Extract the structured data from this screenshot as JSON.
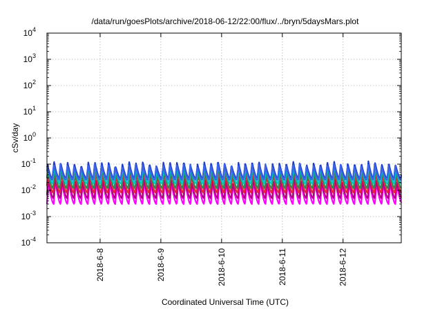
{
  "chart_data": {
    "type": "line",
    "title": "/data/run/goesPlots/archive/2018-06-12/22:00/flux/../bryn/5daysMars.plot",
    "xlabel": "Coordinated Universal Time (UTC)",
    "ylabel": "cSv/day",
    "y_scale": "log",
    "ylim": [
      0.0001,
      10000
    ],
    "y_ticks": [
      {
        "base": "10",
        "exp": "-4",
        "value": 0.0001
      },
      {
        "base": "10",
        "exp": "-3",
        "value": 0.001
      },
      {
        "base": "10",
        "exp": "-2",
        "value": 0.01
      },
      {
        "base": "10",
        "exp": "-1",
        "value": 0.1
      },
      {
        "base": "10",
        "exp": "0",
        "value": 1
      },
      {
        "base": "10",
        "exp": "1",
        "value": 10
      },
      {
        "base": "10",
        "exp": "2",
        "value": 100
      },
      {
        "base": "10",
        "exp": "3",
        "value": 1000
      },
      {
        "base": "10",
        "exp": "4",
        "value": 10000
      }
    ],
    "xlim": [
      "2018-06-07T03:00",
      "2018-06-12T23:00"
    ],
    "x_ticks": [
      {
        "label": "2018-6-8",
        "value": "2018-06-08T00:00"
      },
      {
        "label": "2018-6-9",
        "value": "2018-06-09T00:00"
      },
      {
        "label": "2018-6-10",
        "value": "2018-06-10T00:00"
      },
      {
        "label": "2018-6-11",
        "value": "2018-06-11T00:00"
      },
      {
        "label": "2018-6-12",
        "value": "2018-06-12T00:00"
      }
    ],
    "grid": true,
    "legend": "none",
    "cycle_hours": 2.7,
    "series": [
      {
        "color": "#ff00ff",
        "peak": 0.02,
        "trough": 0.003
      },
      {
        "color": "#b00080",
        "peak": 0.025,
        "trough": 0.005
      },
      {
        "color": "#e8243c",
        "peak": 0.045,
        "trough": 0.008
      },
      {
        "color": "#2e8b57",
        "peak": 0.06,
        "trough": 0.012
      },
      {
        "color": "#00c8c8",
        "peak": 0.08,
        "trough": 0.018
      },
      {
        "color": "#1e3cc8",
        "peak": 0.11,
        "trough": 0.028
      },
      {
        "color": "#3c64e6",
        "peak": 0.09,
        "trough": 0.025
      }
    ]
  }
}
